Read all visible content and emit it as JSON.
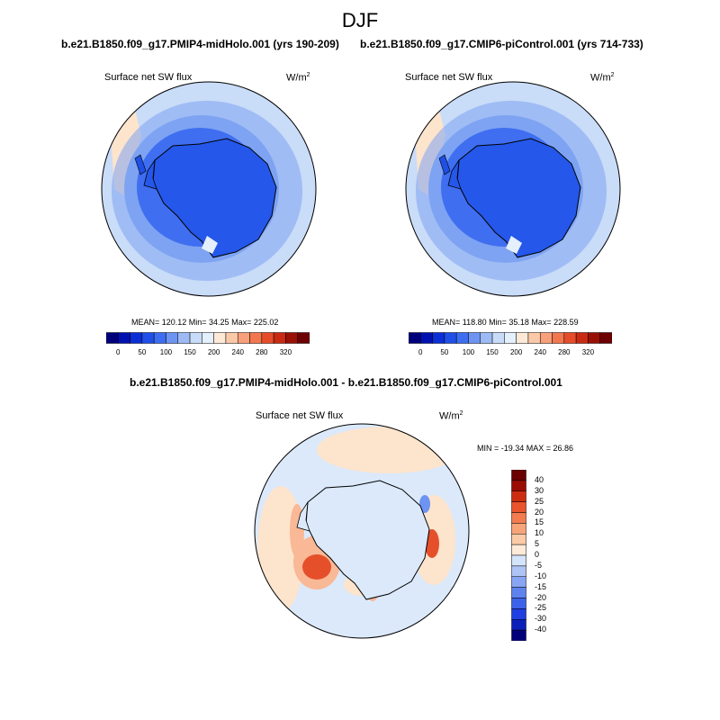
{
  "figure_title": "DJF",
  "panels": {
    "left": {
      "run_title": "b.e21.B1850.f09_g17.PMIP4-midHolo.001 (yrs 190-209)",
      "variable": "Surface net SW flux",
      "units": "W/m",
      "units_exp": "2",
      "stats": "MEAN= 120.12  Min=  34.25  Max= 225.02"
    },
    "right": {
      "run_title": "b.e21.B1850.f09_g17.CMIP6-piControl.001 (yrs 714-733)",
      "variable": "Surface net SW flux",
      "units": "W/m",
      "units_exp": "2",
      "stats": "MEAN= 118.80  Min=  35.18  Max= 228.59"
    },
    "diff": {
      "run_title": "b.e21.B1850.f09_g17.PMIP4-midHolo.001 - b.e21.B1850.f09_g17.CMIP6-piControl.001",
      "variable": "Surface net SW flux",
      "units": "W/m",
      "units_exp": "2",
      "stats": "MIN = -19.34 MAX =  26.86"
    }
  },
  "colorbar_abs": {
    "colors": [
      "#00007a",
      "#0010b0",
      "#0a2fd6",
      "#1f4fe6",
      "#3d6df0",
      "#6d94f2",
      "#9dbaf4",
      "#c8dcf8",
      "#e4f0fc",
      "#fde9d6",
      "#fbc8a8",
      "#f7a07a",
      "#f2774f",
      "#e54d2a",
      "#c82a12",
      "#9a1004",
      "#6d0000"
    ],
    "tick_labels": [
      "0",
      "50",
      "100",
      "150",
      "200",
      "240",
      "280",
      "320"
    ]
  },
  "colorbar_diff": {
    "colors": [
      "#00007a",
      "#0a1fb8",
      "#1f3fe0",
      "#3d62ea",
      "#5e83ef",
      "#87a5f2",
      "#adc4f5",
      "#d4e4fa",
      "#fdebd8",
      "#fbcaa6",
      "#f8a47a",
      "#f37b50",
      "#e9542c",
      "#cc2c10",
      "#9a0c02",
      "#6a0000"
    ],
    "tick_labels": [
      "40",
      "30",
      "25",
      "20",
      "15",
      "10",
      "5",
      "0",
      "-5",
      "-10",
      "-15",
      "-20",
      "-25",
      "-30",
      "-40"
    ]
  },
  "map_colors": {
    "continent": "#2457ea",
    "ocean_inner": "#3f6ef0",
    "ocean_mid": "#7ea3f2",
    "ocean_outer": "#c9dcf8",
    "ocean_warm": "#fde4cc",
    "diff_base": "#dbe9fb",
    "diff_warm": "#f9b896",
    "diff_hot": "#e5502b",
    "diff_cold": "#6d94f2"
  }
}
